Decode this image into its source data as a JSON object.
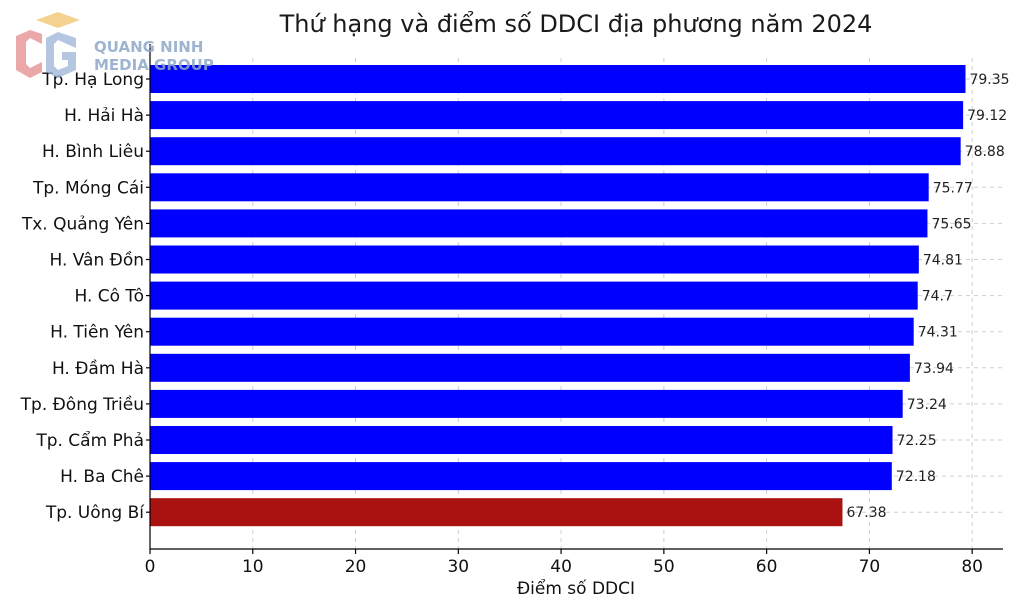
{
  "logo": {
    "line1": "QUANG NINH",
    "line2": "MEDIA GROUP"
  },
  "chart_data": {
    "type": "bar",
    "orientation": "horizontal",
    "title": "Thứ hạng và điểm số DDCI địa phương năm 2024",
    "xlabel": "Điểm số DDCI",
    "ylabel": "",
    "xlim": [
      0,
      83
    ],
    "xticks": [
      0,
      10,
      20,
      30,
      40,
      50,
      60,
      70,
      80
    ],
    "grid": true,
    "categories": [
      "Tp. Hạ Long",
      "H. Hải Hà",
      "H. Bình Liêu",
      "Tp. Móng Cái",
      "Tx. Quảng Yên",
      "H. Vân Đồn",
      "H. Cô Tô",
      "H. Tiên Yên",
      "H. Đầm Hà",
      "Tp. Đông Triều",
      "Tp. Cẩm Phả",
      "H. Ba Chê",
      "Tp. Uông Bí"
    ],
    "values": [
      79.35,
      79.12,
      78.88,
      75.77,
      75.65,
      74.81,
      74.7,
      74.31,
      73.94,
      73.24,
      72.25,
      72.18,
      67.38
    ],
    "value_labels": [
      "79.35",
      "79.12",
      "78.88",
      "75.77",
      "75.65",
      "74.81",
      "74.7",
      "74.31",
      "73.94",
      "73.24",
      "72.25",
      "72.18",
      "67.38"
    ],
    "colors": [
      "#0000ff",
      "#0000ff",
      "#0000ff",
      "#0000ff",
      "#0000ff",
      "#0000ff",
      "#0000ff",
      "#0000ff",
      "#0000ff",
      "#0000ff",
      "#0000ff",
      "#0000ff",
      "#aa1111"
    ]
  }
}
